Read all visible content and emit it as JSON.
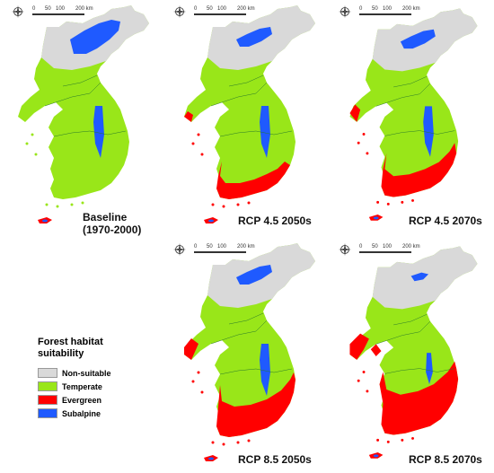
{
  "colors": {
    "non_suitable": "#d9d9d9",
    "temperate": "#99e619",
    "evergreen": "#ff0000",
    "subalpine": "#1f5aff"
  },
  "scale": {
    "ticks": [
      "0",
      "50",
      "100",
      "200 km"
    ]
  },
  "compass_icon": "compass-rose-icon",
  "panels": [
    {
      "label": "Baseline",
      "label2": "(1970-2000)",
      "subalpine": 3,
      "evergreen": 0
    },
    {
      "label": "RCP 4.5 2050s",
      "subalpine": 2,
      "evergreen": 2
    },
    {
      "label": "RCP 4.5 2070s",
      "subalpine": 2,
      "evergreen": 3
    },
    {
      "label": "RCP 8.5 2050s",
      "subalpine": 2,
      "evergreen": 4
    },
    {
      "label": "RCP 8.5 2070s",
      "subalpine": 1,
      "evergreen": 5
    }
  ],
  "legend": {
    "title": "Forest habitat suitability",
    "items": [
      {
        "key": "non_suitable",
        "label": "Non-suitable"
      },
      {
        "key": "temperate",
        "label": "Temperate"
      },
      {
        "key": "evergreen",
        "label": "Evergreen"
      },
      {
        "key": "subalpine",
        "label": "Subalpine"
      }
    ]
  }
}
